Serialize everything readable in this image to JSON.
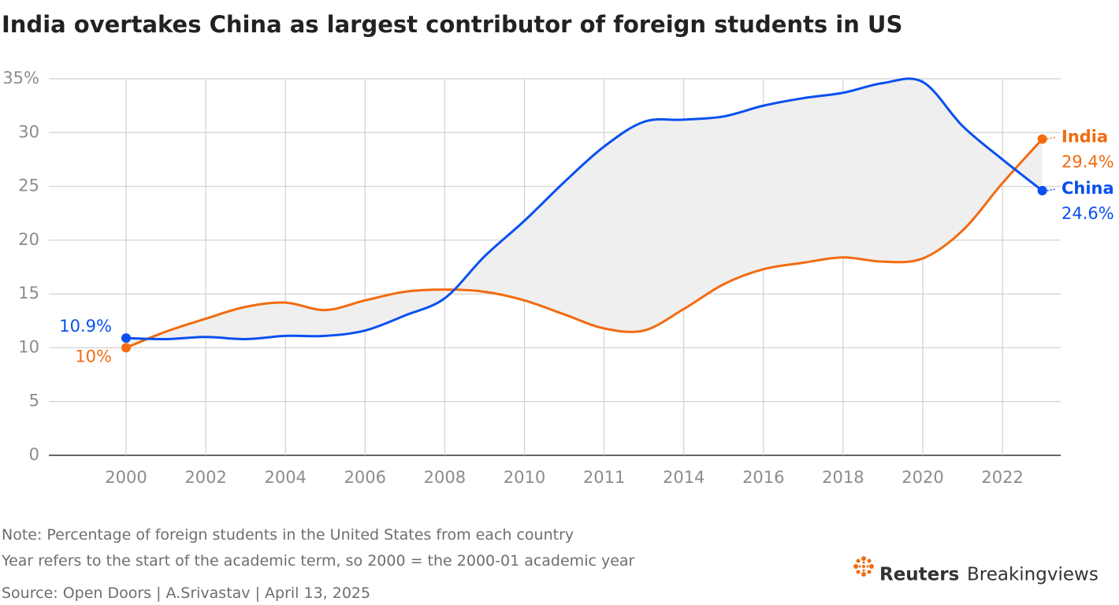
{
  "chart_data": {
    "type": "line",
    "title": "India overtakes China as largest contributor of foreign students in US",
    "categories": [
      "2000",
      null,
      "2002",
      null,
      "2004",
      null,
      "2006",
      null,
      "2008",
      null,
      "2010",
      null,
      "2011",
      null,
      "2014",
      null,
      "2016",
      null,
      "2018",
      null,
      "2020",
      null,
      "2022",
      null
    ],
    "series": [
      {
        "name": "India",
        "color": "#f26b10",
        "values": [
          10,
          11.5,
          12.7,
          13.8,
          14.2,
          13.5,
          14.4,
          15.2,
          15.4,
          15.2,
          14.4,
          13.1,
          11.8,
          11.6,
          13.6,
          15.9,
          17.3,
          17.9,
          18.4,
          18.0,
          18.3,
          20.9,
          25.3,
          29.4
        ],
        "value_labels": [
          "10%",
          null,
          null,
          null,
          null,
          null,
          null,
          null,
          null,
          null,
          null,
          null,
          null,
          null,
          null,
          null,
          null,
          null,
          null,
          null,
          null,
          null,
          null,
          "29.4%"
        ]
      },
      {
        "name": "China",
        "color": "#0a50f0",
        "values": [
          10.9,
          10.8,
          11.0,
          10.8,
          11.1,
          11.1,
          11.6,
          13.0,
          14.6,
          18.5,
          21.8,
          25.4,
          28.7,
          31.0,
          31.2,
          31.5,
          32.5,
          33.2,
          33.7,
          34.6,
          34.7,
          30.6,
          27.5,
          24.6
        ],
        "value_labels": [
          "10.9%",
          null,
          null,
          null,
          null,
          null,
          null,
          null,
          null,
          null,
          null,
          null,
          null,
          null,
          null,
          null,
          null,
          null,
          null,
          null,
          null,
          null,
          null,
          "24.6%"
        ]
      }
    ],
    "fill_between": "#efefef",
    "ylim": [
      0,
      35
    ],
    "yticks": [
      0,
      5,
      10,
      15,
      20,
      25,
      30,
      {
        "value": 35,
        "label": "35%"
      }
    ],
    "grid": true
  },
  "footer": {
    "notes": [
      "Note: Percentage of foreign students in the United States from each country",
      "Year refers to the start of the academic term, so 2000 = the 2000-01 academic year"
    ],
    "source": "Source: Open Doors | A.Srivastav | April 13, 2025",
    "logo": {
      "brand": "Reuters",
      "product": "Breakingviews"
    }
  }
}
